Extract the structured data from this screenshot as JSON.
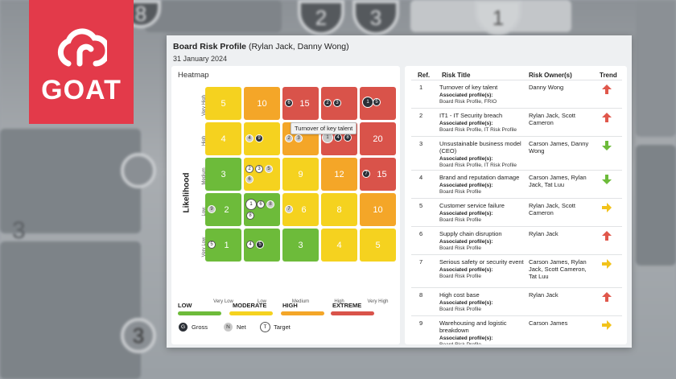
{
  "brand": {
    "logo_text": "GOAT",
    "color": "#e33a4a"
  },
  "background_numbers": [
    "8",
    "2",
    "3",
    "1",
    "3",
    "3"
  ],
  "report": {
    "title": "Board Risk Profile",
    "owners": "(Rylan Jack, Danny Wong)",
    "date": "31 January 2024"
  },
  "heatmap": {
    "title": "Heatmap",
    "y_axis": "Likelihood",
    "row_labels": [
      "Very High",
      "High",
      "Medium",
      "Low",
      "Very Low"
    ],
    "col_labels": [
      "Very Low",
      "Low",
      "Medium",
      "High",
      "Very High"
    ],
    "scores": [
      [
        "5",
        "10",
        "15",
        "",
        ""
      ],
      [
        "4",
        "",
        "",
        "",
        "20"
      ],
      [
        "3",
        "",
        "9",
        "12",
        "15"
      ],
      [
        "2",
        "",
        "6",
        "8",
        "10"
      ],
      [
        "1",
        "",
        "3",
        "4",
        "5"
      ]
    ],
    "tooltip": "Turnover of key talent",
    "levels": [
      {
        "label": "LOW",
        "color": "#6dbb3a"
      },
      {
        "label": "MODERATE",
        "color": "#f5d21f"
      },
      {
        "label": "HIGH",
        "color": "#f4a628"
      },
      {
        "label": "EXTREME",
        "color": "#d9534a"
      }
    ],
    "marker_key": [
      {
        "letter": "G",
        "label": "Gross"
      },
      {
        "letter": "N",
        "label": "Net"
      },
      {
        "letter": "T",
        "label": "Target"
      }
    ]
  },
  "table": {
    "headers": [
      "Ref.",
      "Risk Title",
      "Risk Owner(s)",
      "Trend"
    ],
    "assoc_label": "Associated profile(s):",
    "rows": [
      {
        "ref": "1",
        "title": "Turnover of key talent",
        "assoc": "Board Risk Profile, FRIO",
        "owners": "Danny Wong",
        "trend": "up"
      },
      {
        "ref": "2",
        "title": "IT1 - IT Security breach",
        "assoc": "Board Risk Profile, IT Risk Profile",
        "owners": "Rylan Jack, Scott Cameron",
        "trend": "up"
      },
      {
        "ref": "3",
        "title": "Unsustainable business model (CEO)",
        "assoc": "Board Risk Profile, IT Risk Profile",
        "owners": "Carson James, Danny Wong",
        "trend": "down"
      },
      {
        "ref": "4",
        "title": "Brand and reputation damage",
        "assoc": "Board Risk Profile",
        "owners": "Carson James, Rylan Jack, Tat Luu",
        "trend": "down"
      },
      {
        "ref": "5",
        "title": "Customer service failure",
        "assoc": "Board Risk Profile",
        "owners": "Rylan Jack, Scott Cameron",
        "trend": "right"
      },
      {
        "ref": "6",
        "title": "Supply chain disruption",
        "assoc": "Board Risk Profile",
        "owners": "Rylan Jack",
        "trend": "up"
      },
      {
        "ref": "7",
        "title": "Serious safety or security event",
        "assoc": "Board Risk Profile",
        "owners": "Carson James, Rylan Jack, Scott Cameron, Tat Luu",
        "trend": "right"
      },
      {
        "ref": "8",
        "title": "High cost base",
        "assoc": "Board Risk Profile",
        "owners": "Rylan Jack",
        "trend": "up"
      },
      {
        "ref": "9",
        "title": "Warehousing and logistic breakdown",
        "assoc": "Board Risk Profile",
        "owners": "Carson James",
        "trend": "right"
      }
    ]
  }
}
